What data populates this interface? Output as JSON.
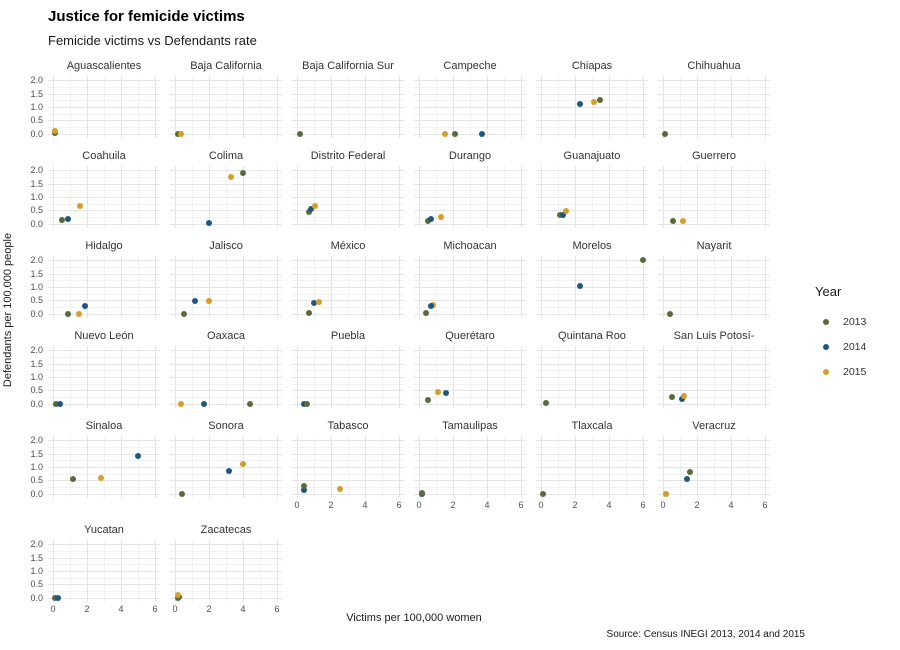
{
  "header": {
    "title": "Justice for femicide victims",
    "subtitle": "Femicide victims vs Defendants rate"
  },
  "axes": {
    "y_label": "Defendants per 100,000 people",
    "x_label": "Victims per 100,000 women",
    "y_ticks": [
      "2.0",
      "1.5",
      "1.0",
      "0.5",
      "0.0"
    ],
    "x_ticks": [
      "0",
      "2",
      "4",
      "6"
    ]
  },
  "legend": {
    "title": "Year",
    "entries": [
      {
        "label": "2013",
        "color": "#5a6b3b"
      },
      {
        "label": "2014",
        "color": "#1f5780"
      },
      {
        "label": "2015",
        "color": "#d49e2a"
      }
    ]
  },
  "caption": "Source: Census INEGI 2013, 2014 and 2015",
  "chart_data": {
    "type": "scatter",
    "xlabel": "Victims per 100,000 women",
    "ylabel": "Defendants per 100,000 people",
    "xlim": [
      0,
      6
    ],
    "ylim": [
      0,
      2
    ],
    "x_major_breaks": [
      0,
      2,
      4,
      6
    ],
    "x_minor_breaks": [
      1,
      3,
      5
    ],
    "y_major_breaks": [
      0,
      0.5,
      1,
      1.5,
      2
    ],
    "y_minor_breaks": [
      0.25,
      0.75,
      1.25,
      1.75
    ],
    "layout": {
      "columns": 6,
      "grid": true,
      "legend_position": "right"
    },
    "series_colors": {
      "2013": "#5a6b3b",
      "2014": "#1f5780",
      "2015": "#d49e2a"
    },
    "facets": [
      {
        "name": "Aguascalientes",
        "points": [
          {
            "year": "2013",
            "x": 0.1,
            "y": 0.03
          },
          {
            "year": "2015",
            "x": 0.12,
            "y": 0.12
          }
        ]
      },
      {
        "name": "Baja California",
        "points": [
          {
            "year": "2013",
            "x": 0.2,
            "y": 0.0
          },
          {
            "year": "2015",
            "x": 0.38,
            "y": 0.0
          }
        ]
      },
      {
        "name": "Baja California Sur",
        "points": [
          {
            "year": "2013",
            "x": 0.2,
            "y": 0.0
          }
        ]
      },
      {
        "name": "Campeche",
        "points": [
          {
            "year": "2015",
            "x": 1.55,
            "y": 0.0
          },
          {
            "year": "2013",
            "x": 2.1,
            "y": 0.0
          },
          {
            "year": "2014",
            "x": 3.7,
            "y": 0.0
          }
        ]
      },
      {
        "name": "Chiapas",
        "points": [
          {
            "year": "2014",
            "x": 2.3,
            "y": 1.1
          },
          {
            "year": "2015",
            "x": 3.1,
            "y": 1.2
          },
          {
            "year": "2013",
            "x": 3.45,
            "y": 1.25
          }
        ]
      },
      {
        "name": "Chihuahua",
        "points": [
          {
            "year": "2013",
            "x": 0.1,
            "y": 0.0
          }
        ]
      },
      {
        "name": "Coahuila",
        "points": [
          {
            "year": "2013",
            "x": 0.5,
            "y": 0.15
          },
          {
            "year": "2014",
            "x": 0.9,
            "y": 0.2
          },
          {
            "year": "2015",
            "x": 1.6,
            "y": 0.65
          }
        ]
      },
      {
        "name": "Colima",
        "points": [
          {
            "year": "2014",
            "x": 2.0,
            "y": 0.05
          },
          {
            "year": "2015",
            "x": 3.3,
            "y": 1.75
          },
          {
            "year": "2013",
            "x": 4.0,
            "y": 1.9
          }
        ]
      },
      {
        "name": "Distrito Federal",
        "points": [
          {
            "year": "2013",
            "x": 0.7,
            "y": 0.45
          },
          {
            "year": "2014",
            "x": 0.85,
            "y": 0.55
          },
          {
            "year": "2015",
            "x": 1.05,
            "y": 0.65
          }
        ]
      },
      {
        "name": "Durango",
        "points": [
          {
            "year": "2013",
            "x": 0.5,
            "y": 0.1
          },
          {
            "year": "2014",
            "x": 0.7,
            "y": 0.2
          },
          {
            "year": "2015",
            "x": 1.3,
            "y": 0.25
          }
        ]
      },
      {
        "name": "Guanajuato",
        "points": [
          {
            "year": "2013",
            "x": 1.1,
            "y": 0.35
          },
          {
            "year": "2014",
            "x": 1.3,
            "y": 0.35
          },
          {
            "year": "2015",
            "x": 1.45,
            "y": 0.5
          }
        ]
      },
      {
        "name": "Guerrero",
        "points": [
          {
            "year": "2013",
            "x": 0.6,
            "y": 0.1
          },
          {
            "year": "2015",
            "x": 1.2,
            "y": 0.1
          }
        ]
      },
      {
        "name": "Hidalgo",
        "points": [
          {
            "year": "2013",
            "x": 0.9,
            "y": 0.0
          },
          {
            "year": "2015",
            "x": 1.5,
            "y": 0.0
          },
          {
            "year": "2014",
            "x": 1.9,
            "y": 0.3
          }
        ]
      },
      {
        "name": "Jalisco",
        "points": [
          {
            "year": "2013",
            "x": 0.5,
            "y": 0.0
          },
          {
            "year": "2014",
            "x": 1.2,
            "y": 0.5
          },
          {
            "year": "2015",
            "x": 2.0,
            "y": 0.5
          }
        ]
      },
      {
        "name": "México",
        "points": [
          {
            "year": "2013",
            "x": 0.7,
            "y": 0.05
          },
          {
            "year": "2014",
            "x": 1.0,
            "y": 0.4
          },
          {
            "year": "2015",
            "x": 1.3,
            "y": 0.45
          }
        ]
      },
      {
        "name": "Michoacan",
        "points": [
          {
            "year": "2013",
            "x": 0.4,
            "y": 0.05
          },
          {
            "year": "2015",
            "x": 0.8,
            "y": 0.35
          },
          {
            "year": "2014",
            "x": 0.7,
            "y": 0.3
          }
        ]
      },
      {
        "name": "Morelos",
        "points": [
          {
            "year": "2014",
            "x": 2.3,
            "y": 1.05
          },
          {
            "year": "2013",
            "x": 6.0,
            "y": 2.0
          }
        ]
      },
      {
        "name": "Nayarit",
        "points": [
          {
            "year": "2013",
            "x": 0.4,
            "y": 0.0
          }
        ]
      },
      {
        "name": "Nuevo León",
        "points": [
          {
            "year": "2013",
            "x": 0.2,
            "y": 0.0
          },
          {
            "year": "2014",
            "x": 0.4,
            "y": 0.0
          }
        ]
      },
      {
        "name": "Oaxaca",
        "points": [
          {
            "year": "2015",
            "x": 0.35,
            "y": 0.0
          },
          {
            "year": "2014",
            "x": 1.7,
            "y": 0.0
          },
          {
            "year": "2013",
            "x": 4.4,
            "y": 0.0
          }
        ]
      },
      {
        "name": "Puebla",
        "points": [
          {
            "year": "2014",
            "x": 0.4,
            "y": 0.0
          },
          {
            "year": "2013",
            "x": 0.6,
            "y": 0.0
          }
        ]
      },
      {
        "name": "Querétaro",
        "points": [
          {
            "year": "2013",
            "x": 0.5,
            "y": 0.15
          },
          {
            "year": "2015",
            "x": 1.1,
            "y": 0.45
          },
          {
            "year": "2014",
            "x": 1.6,
            "y": 0.4
          }
        ]
      },
      {
        "name": "Quintana Roo",
        "points": [
          {
            "year": "2013",
            "x": 0.3,
            "y": 0.05
          }
        ]
      },
      {
        "name": "San Luis Potosí-",
        "points": [
          {
            "year": "2013",
            "x": 0.5,
            "y": 0.25
          },
          {
            "year": "2014",
            "x": 1.1,
            "y": 0.2
          },
          {
            "year": "2015",
            "x": 1.25,
            "y": 0.3
          }
        ]
      },
      {
        "name": "Sinaloa",
        "points": [
          {
            "year": "2013",
            "x": 1.2,
            "y": 0.55
          },
          {
            "year": "2015",
            "x": 2.8,
            "y": 0.6
          },
          {
            "year": "2014",
            "x": 5.0,
            "y": 1.4
          }
        ]
      },
      {
        "name": "Sonora",
        "points": [
          {
            "year": "2013",
            "x": 0.4,
            "y": 0.0
          },
          {
            "year": "2014",
            "x": 3.2,
            "y": 0.85
          },
          {
            "year": "2015",
            "x": 4.0,
            "y": 1.1
          }
        ]
      },
      {
        "name": "Tabasco",
        "points": [
          {
            "year": "2014",
            "x": 0.4,
            "y": 0.15
          },
          {
            "year": "2013",
            "x": 0.4,
            "y": 0.3
          },
          {
            "year": "2015",
            "x": 2.5,
            "y": 0.2
          }
        ]
      },
      {
        "name": "Tamaulipas",
        "points": [
          {
            "year": "2014",
            "x": 0.15,
            "y": 0.0
          },
          {
            "year": "2013",
            "x": 0.2,
            "y": 0.05
          }
        ]
      },
      {
        "name": "Tlaxcala",
        "points": [
          {
            "year": "2013",
            "x": 0.1,
            "y": 0.0
          }
        ]
      },
      {
        "name": "Veracruz",
        "points": [
          {
            "year": "2015",
            "x": 0.2,
            "y": 0.0
          },
          {
            "year": "2014",
            "x": 1.4,
            "y": 0.55
          },
          {
            "year": "2013",
            "x": 1.6,
            "y": 0.8
          }
        ]
      },
      {
        "name": "Yucatan",
        "points": [
          {
            "year": "2013",
            "x": 0.1,
            "y": 0.0
          },
          {
            "year": "2014",
            "x": 0.3,
            "y": 0.0
          }
        ]
      },
      {
        "name": "Zacatecas",
        "points": [
          {
            "year": "2014",
            "x": 0.25,
            "y": 0.02
          },
          {
            "year": "2013",
            "x": 0.15,
            "y": 0.0
          },
          {
            "year": "2015",
            "x": 0.2,
            "y": 0.12
          }
        ]
      }
    ]
  }
}
